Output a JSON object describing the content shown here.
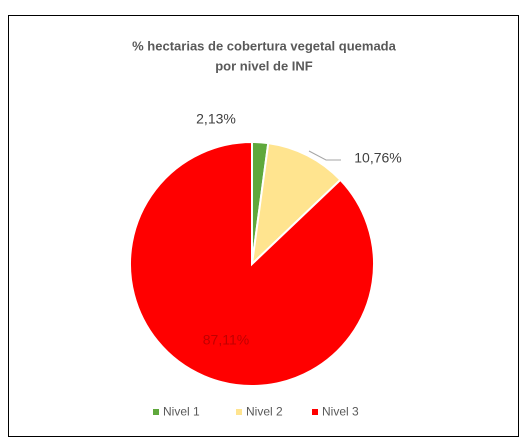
{
  "chart_data": {
    "type": "pie",
    "title": [
      "% hectarias de cobertura vegetal quemada",
      "por nivel de INF"
    ],
    "categories": [
      "Nivel 1",
      "Nivel 2",
      "Nivel 3"
    ],
    "values": [
      2.13,
      10.76,
      87.11
    ],
    "value_labels": [
      "2,13%",
      "10,76%",
      "87,11%"
    ],
    "colors": [
      "#5fa83c",
      "#ffe48f",
      "#ff0000"
    ],
    "legend": "bottom"
  }
}
